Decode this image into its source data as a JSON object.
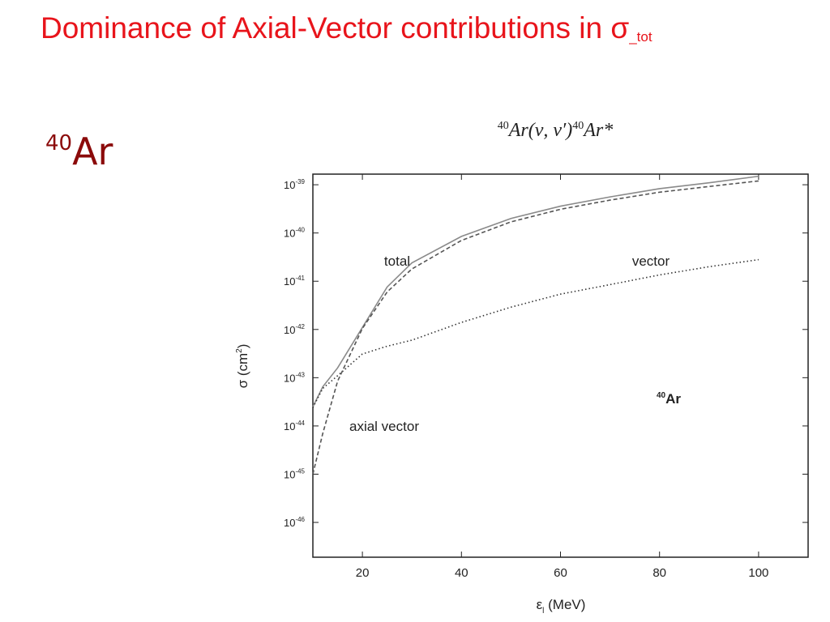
{
  "slide": {
    "title": "Dominance of Axial-Vector contributions in σ",
    "title_subscript": "_tot",
    "heading_sup": "40",
    "heading": "Ar"
  },
  "chart_data": {
    "type": "line",
    "title": {
      "pre_sup": "40",
      "main": "Ar(ν, ν′)",
      "mid_sup": "40",
      "end": "Ar*"
    },
    "x_label": {
      "symbol": "ε",
      "subscript": "l",
      "unit": " (MeV)"
    },
    "y_label": {
      "main": "σ (cm",
      "sup": "2",
      "end": ")"
    },
    "x": [
      10,
      12,
      15,
      20,
      25,
      30,
      40,
      50,
      60,
      70,
      80,
      90,
      100
    ],
    "series": [
      {
        "name": "total",
        "color": "#8a8a8a",
        "style": "solid",
        "values": [
          2.5e-44,
          6.5e-44,
          1.6e-43,
          1.1e-42,
          7.6e-42,
          2.4e-41,
          8.5e-41,
          2e-40,
          3.6e-40,
          5.6e-40,
          8.3e-40,
          1.1e-39,
          1.5e-39
        ]
      },
      {
        "name": "vector",
        "color": "#333333",
        "style": "dotted",
        "values": [
          2.4e-44,
          6e-44,
          1.1e-43,
          3.1e-43,
          4.5e-43,
          6e-43,
          1.4e-42,
          2.9e-42,
          5.4e-42,
          8.5e-42,
          1.35e-41,
          2e-41,
          2.8e-41
        ]
      },
      {
        "name": "axial vector",
        "color": "#555555",
        "style": "dashed",
        "values": [
          1e-45,
          7e-45,
          8.5e-44,
          1.05e-42,
          6e-42,
          1.8e-41,
          7e-41,
          1.7e-40,
          3.1e-40,
          4.8e-40,
          7e-40,
          9.2e-40,
          1.2e-39
        ]
      }
    ],
    "inset_label": {
      "sup": "40",
      "text": "Ar"
    },
    "xlim": [
      10,
      110
    ],
    "xticks": [
      20,
      40,
      60,
      80,
      100
    ],
    "ylim": [
      1.9e-47,
      1.66e-39
    ],
    "log_y": true,
    "yticks": [
      {
        "value": 1e-46,
        "label": "10",
        "power": "-46"
      },
      {
        "value": 1e-45,
        "label": "10",
        "power": "-45"
      },
      {
        "value": 1e-44,
        "label": "10",
        "power": "-44"
      },
      {
        "value": 1e-43,
        "label": "10",
        "power": "-43"
      },
      {
        "value": 1e-42,
        "label": "10",
        "power": "-42"
      },
      {
        "value": 1e-41,
        "label": "10",
        "power": "-41"
      },
      {
        "value": 1e-40,
        "label": "10",
        "power": "-40"
      },
      {
        "value": 1e-39,
        "label": "10",
        "power": "-39"
      }
    ]
  }
}
